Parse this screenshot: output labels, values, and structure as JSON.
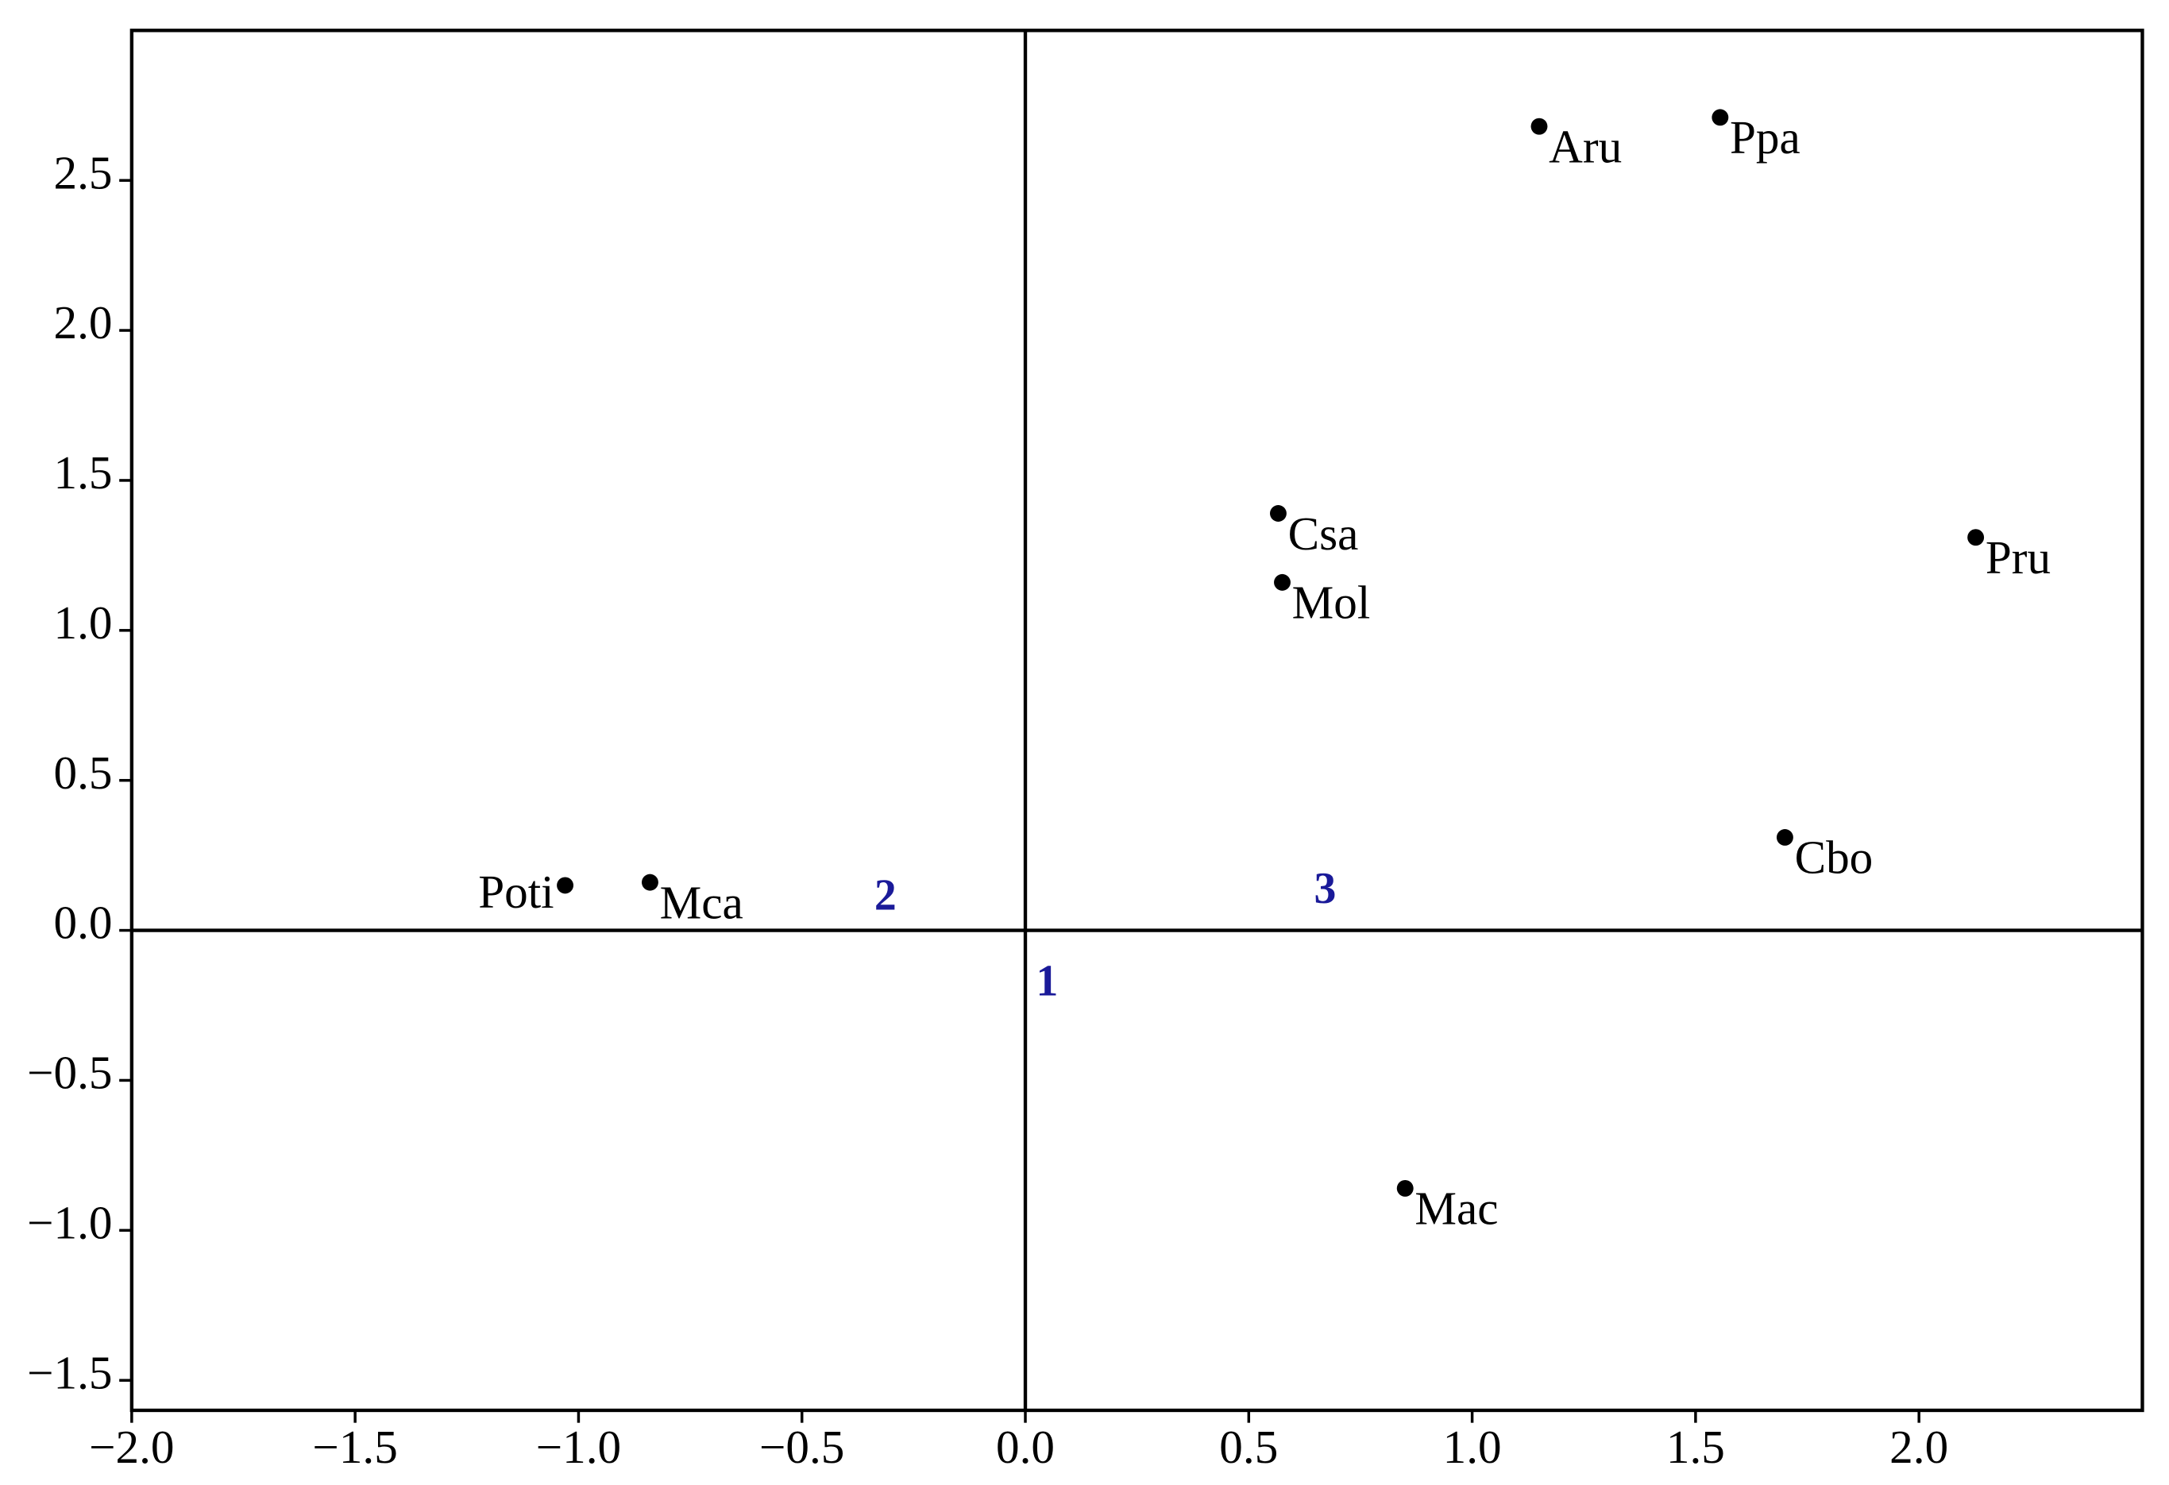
{
  "chart_data": {
    "type": "scatter",
    "point_labels": [
      "Poti",
      "Mca",
      "Aru",
      "Ppa",
      "Csa",
      "Mol",
      "Pru",
      "Cbo",
      "Mac"
    ],
    "x": [
      -1.03,
      -0.84,
      1.15,
      1.555,
      0.566,
      0.575,
      2.127,
      1.7,
      0.85
    ],
    "values": [
      0.15,
      0.16,
      2.68,
      2.71,
      1.39,
      1.16,
      1.31,
      0.31,
      -0.86
    ],
    "color": "#000000",
    "annotations": [
      "1",
      "2",
      "3"
    ],
    "annotation_color": "#1a1a99",
    "xlim": [
      -2.0,
      2.5
    ],
    "ylim": [
      -1.6,
      3.0
    ],
    "xticks": [
      {
        "value": -2.0,
        "label": "−2.0"
      },
      {
        "value": -1.5,
        "label": "−1.5"
      },
      {
        "value": -1.0,
        "label": "−1.0"
      },
      {
        "value": -0.5,
        "label": "−0.5"
      },
      {
        "value": 0,
        "label": "0.0"
      },
      {
        "value": 0.5,
        "label": "0.5"
      },
      {
        "value": 1.0,
        "label": "1.0"
      },
      {
        "value": 1.5,
        "label": "1.5"
      },
      {
        "value": 2.0,
        "label": "2.0"
      }
    ],
    "yticks": [
      {
        "value": -1.5,
        "label": "−1.5"
      },
      {
        "value": -1.0,
        "label": "−1.0"
      },
      {
        "value": -0.5,
        "label": "−0.5"
      },
      {
        "value": 0,
        "label": "0.0"
      },
      {
        "value": 0.5,
        "label": "0.5"
      },
      {
        "value": 1.0,
        "label": "1.0"
      },
      {
        "value": 1.5,
        "label": "1.5"
      },
      {
        "value": 2.0,
        "label": "2.0"
      },
      {
        "value": 2.5,
        "label": "2.5"
      }
    ],
    "grid": false
  }
}
